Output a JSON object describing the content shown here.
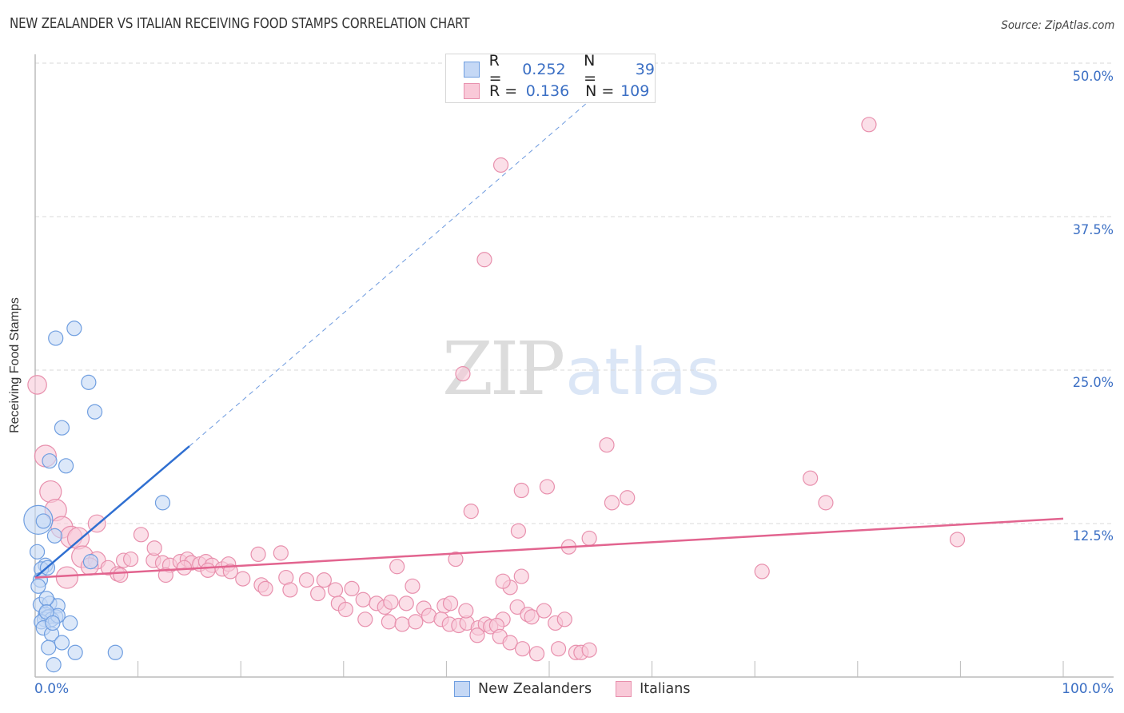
{
  "header": {
    "title": "NEW ZEALANDER VS ITALIAN RECEIVING FOOD STAMPS CORRELATION CHART",
    "source": "Source: ZipAtlas.com"
  },
  "legend_top": {
    "rows": [
      {
        "series": "New Zealanders",
        "r_label": "R =",
        "r_value": "0.252",
        "n_label": "N =",
        "n_value": "39"
      },
      {
        "series": "Italians",
        "r_label": "R =",
        "r_value": "0.136",
        "n_label": "N =",
        "n_value": "109"
      }
    ]
  },
  "legend_bottom": {
    "items": [
      {
        "label": "New Zealanders"
      },
      {
        "label": "Italians"
      }
    ]
  },
  "axes": {
    "ylabel": "Receiving Food Stamps",
    "yticks": [
      "50.0%",
      "37.5%",
      "25.0%",
      "12.5%"
    ],
    "xticks": [
      "0.0%",
      "100.0%"
    ]
  },
  "watermark": {
    "part1": "ZIP",
    "part2": "atlas"
  },
  "colors": {
    "blue_fill": "#c5d8f5",
    "blue_stroke": "#6f9ee0",
    "blue_line": "#2f6fd1",
    "pink_fill": "#f9c9d8",
    "pink_stroke": "#e890ad",
    "pink_line": "#e2648f",
    "tick_text": "#3b6fc4",
    "grid": "#d9d9d9"
  },
  "chart_data": {
    "type": "scatter",
    "title": "NEW ZEALANDER VS ITALIAN RECEIVING FOOD STAMPS CORRELATION CHART",
    "xlabel": "",
    "ylabel": "Receiving Food Stamps",
    "xlim": [
      0,
      100
    ],
    "ylim": [
      0,
      50
    ],
    "x_ticks": [
      "0.0%",
      "100.0%"
    ],
    "y_ticks": [
      "12.5%",
      "25.0%",
      "37.5%",
      "50.0%"
    ],
    "grid": "horizontal dashed",
    "legend_position": "bottom-center",
    "series": [
      {
        "name": "New Zealanders",
        "r": 0.252,
        "n": 39,
        "trend": {
          "x": [
            0,
            15
          ],
          "y": [
            8.1,
            18.8
          ],
          "extended_dashed_to": [
            54,
            47.0
          ]
        },
        "points": [
          [
            3.8,
            28.4,
            1
          ],
          [
            2.0,
            27.6,
            1
          ],
          [
            5.2,
            24.0,
            1
          ],
          [
            5.8,
            21.6,
            1
          ],
          [
            2.6,
            20.3,
            1
          ],
          [
            1.4,
            17.6,
            1
          ],
          [
            3.0,
            17.2,
            1
          ],
          [
            12.4,
            14.2,
            1
          ],
          [
            0.3,
            12.8,
            2
          ],
          [
            0.8,
            12.7,
            1
          ],
          [
            1.9,
            11.5,
            1
          ],
          [
            0.2,
            10.2,
            1
          ],
          [
            1.0,
            9.1,
            1
          ],
          [
            0.6,
            8.8,
            1
          ],
          [
            1.2,
            8.9,
            1
          ],
          [
            0.5,
            7.9,
            1
          ],
          [
            0.3,
            7.4,
            1
          ],
          [
            5.4,
            9.4,
            1
          ],
          [
            0.5,
            5.9,
            1
          ],
          [
            1.4,
            6.0,
            1
          ],
          [
            2.2,
            5.8,
            1
          ],
          [
            1.0,
            5.1,
            1
          ],
          [
            2.0,
            4.9,
            1
          ],
          [
            0.9,
            4.7,
            1
          ],
          [
            1.3,
            4.9,
            1
          ],
          [
            1.6,
            4.7,
            1
          ],
          [
            0.6,
            4.5,
            1
          ],
          [
            3.4,
            4.4,
            1
          ],
          [
            0.8,
            4.0,
            1
          ],
          [
            1.6,
            3.5,
            1
          ],
          [
            2.6,
            2.8,
            1
          ],
          [
            1.3,
            2.4,
            1
          ],
          [
            3.9,
            2.0,
            1
          ],
          [
            7.8,
            2.0,
            1
          ],
          [
            1.8,
            1.0,
            1
          ],
          [
            1.1,
            6.4,
            1
          ],
          [
            2.2,
            5.0,
            1
          ],
          [
            1.1,
            5.3,
            1
          ],
          [
            1.7,
            4.4,
            1
          ]
        ]
      },
      {
        "name": "Italians",
        "r": 0.136,
        "n": 109,
        "trend": {
          "x": [
            0,
            100
          ],
          "y": [
            8.1,
            12.9
          ]
        },
        "points": [
          [
            81.1,
            45.0,
            1
          ],
          [
            45.3,
            41.7,
            1
          ],
          [
            43.7,
            34.0,
            1
          ],
          [
            41.6,
            24.7,
            1
          ],
          [
            0.2,
            23.8,
            1.3
          ],
          [
            55.6,
            18.9,
            1
          ],
          [
            1.0,
            18.0,
            1.5
          ],
          [
            1.5,
            15.1,
            1.5
          ],
          [
            2.0,
            13.6,
            1.5
          ],
          [
            75.4,
            16.2,
            1
          ],
          [
            47.3,
            15.2,
            1
          ],
          [
            49.8,
            15.5,
            1
          ],
          [
            57.6,
            14.6,
            1
          ],
          [
            56.1,
            14.2,
            1
          ],
          [
            76.9,
            14.2,
            1
          ],
          [
            42.4,
            13.5,
            1
          ],
          [
            6.0,
            12.5,
            1.2
          ],
          [
            2.6,
            12.2,
            1.5
          ],
          [
            3.5,
            11.4,
            1.5
          ],
          [
            4.2,
            11.3,
            1.5
          ],
          [
            47.0,
            11.9,
            1
          ],
          [
            51.9,
            10.6,
            1
          ],
          [
            53.9,
            11.3,
            1
          ],
          [
            89.7,
            11.2,
            1
          ],
          [
            10.3,
            11.6,
            1
          ],
          [
            4.6,
            9.8,
            1.5
          ],
          [
            6.0,
            9.5,
            1.2
          ],
          [
            8.6,
            9.5,
            1
          ],
          [
            9.3,
            9.6,
            1
          ],
          [
            11.5,
            9.5,
            1
          ],
          [
            12.4,
            9.3,
            1
          ],
          [
            13.1,
            9.1,
            1
          ],
          [
            14.1,
            9.4,
            1
          ],
          [
            14.8,
            9.6,
            1
          ],
          [
            15.2,
            9.3,
            1
          ],
          [
            16.0,
            9.2,
            1
          ],
          [
            16.6,
            9.4,
            1
          ],
          [
            17.2,
            9.1,
            1
          ],
          [
            18.2,
            8.8,
            1
          ],
          [
            18.8,
            9.2,
            1
          ],
          [
            19.0,
            8.6,
            1
          ],
          [
            7.1,
            8.9,
            1
          ],
          [
            8.0,
            8.4,
            1
          ],
          [
            8.3,
            8.3,
            1
          ],
          [
            12.7,
            8.3,
            1
          ],
          [
            14.5,
            8.9,
            1
          ],
          [
            16.8,
            8.7,
            1
          ],
          [
            21.7,
            10.0,
            1
          ],
          [
            23.9,
            10.1,
            1
          ],
          [
            20.2,
            8.0,
            1
          ],
          [
            22.0,
            7.5,
            1
          ],
          [
            24.4,
            8.1,
            1
          ],
          [
            22.4,
            7.2,
            1
          ],
          [
            26.4,
            7.9,
            1
          ],
          [
            27.5,
            6.8,
            1
          ],
          [
            28.1,
            7.9,
            1
          ],
          [
            29.2,
            7.1,
            1
          ],
          [
            30.8,
            7.2,
            1
          ],
          [
            24.8,
            7.1,
            1
          ],
          [
            29.5,
            6.0,
            1
          ],
          [
            30.2,
            5.5,
            1
          ],
          [
            31.9,
            6.3,
            1
          ],
          [
            33.2,
            6.0,
            1
          ],
          [
            34.0,
            5.7,
            1
          ],
          [
            34.6,
            6.1,
            1
          ],
          [
            36.1,
            6.0,
            1
          ],
          [
            36.7,
            7.4,
            1
          ],
          [
            37.8,
            5.6,
            1
          ],
          [
            38.3,
            5.0,
            1
          ],
          [
            39.8,
            5.8,
            1
          ],
          [
            32.1,
            4.7,
            1
          ],
          [
            34.4,
            4.5,
            1
          ],
          [
            35.7,
            4.3,
            1
          ],
          [
            37.0,
            4.5,
            1
          ],
          [
            39.5,
            4.7,
            1
          ],
          [
            40.3,
            4.3,
            1
          ],
          [
            41.2,
            4.2,
            1
          ],
          [
            42.0,
            4.4,
            1
          ],
          [
            43.1,
            4.0,
            1
          ],
          [
            43.8,
            4.3,
            1
          ],
          [
            44.3,
            4.1,
            1
          ],
          [
            45.5,
            4.7,
            1
          ],
          [
            46.9,
            5.7,
            1
          ],
          [
            47.9,
            5.1,
            1
          ],
          [
            48.3,
            4.9,
            1
          ],
          [
            49.5,
            5.4,
            1
          ],
          [
            50.6,
            4.4,
            1
          ],
          [
            51.5,
            4.7,
            1
          ],
          [
            46.2,
            7.3,
            1
          ],
          [
            47.3,
            8.2,
            1
          ],
          [
            45.5,
            7.8,
            1
          ],
          [
            35.2,
            9.0,
            1
          ],
          [
            40.9,
            9.6,
            1
          ],
          [
            40.4,
            6.0,
            1
          ],
          [
            41.9,
            5.4,
            1
          ],
          [
            44.9,
            4.2,
            1
          ],
          [
            45.2,
            3.3,
            1
          ],
          [
            46.2,
            2.8,
            1
          ],
          [
            43.0,
            3.4,
            1
          ],
          [
            47.4,
            2.3,
            1
          ],
          [
            48.8,
            1.9,
            1
          ],
          [
            50.9,
            2.3,
            1
          ],
          [
            52.6,
            2.0,
            1
          ],
          [
            53.1,
            2.0,
            1
          ],
          [
            53.9,
            2.2,
            1
          ],
          [
            70.7,
            8.6,
            1
          ],
          [
            11.6,
            10.5,
            1
          ],
          [
            3.1,
            8.1,
            1.5
          ],
          [
            5.3,
            9.0,
            1.2
          ]
        ]
      }
    ]
  }
}
